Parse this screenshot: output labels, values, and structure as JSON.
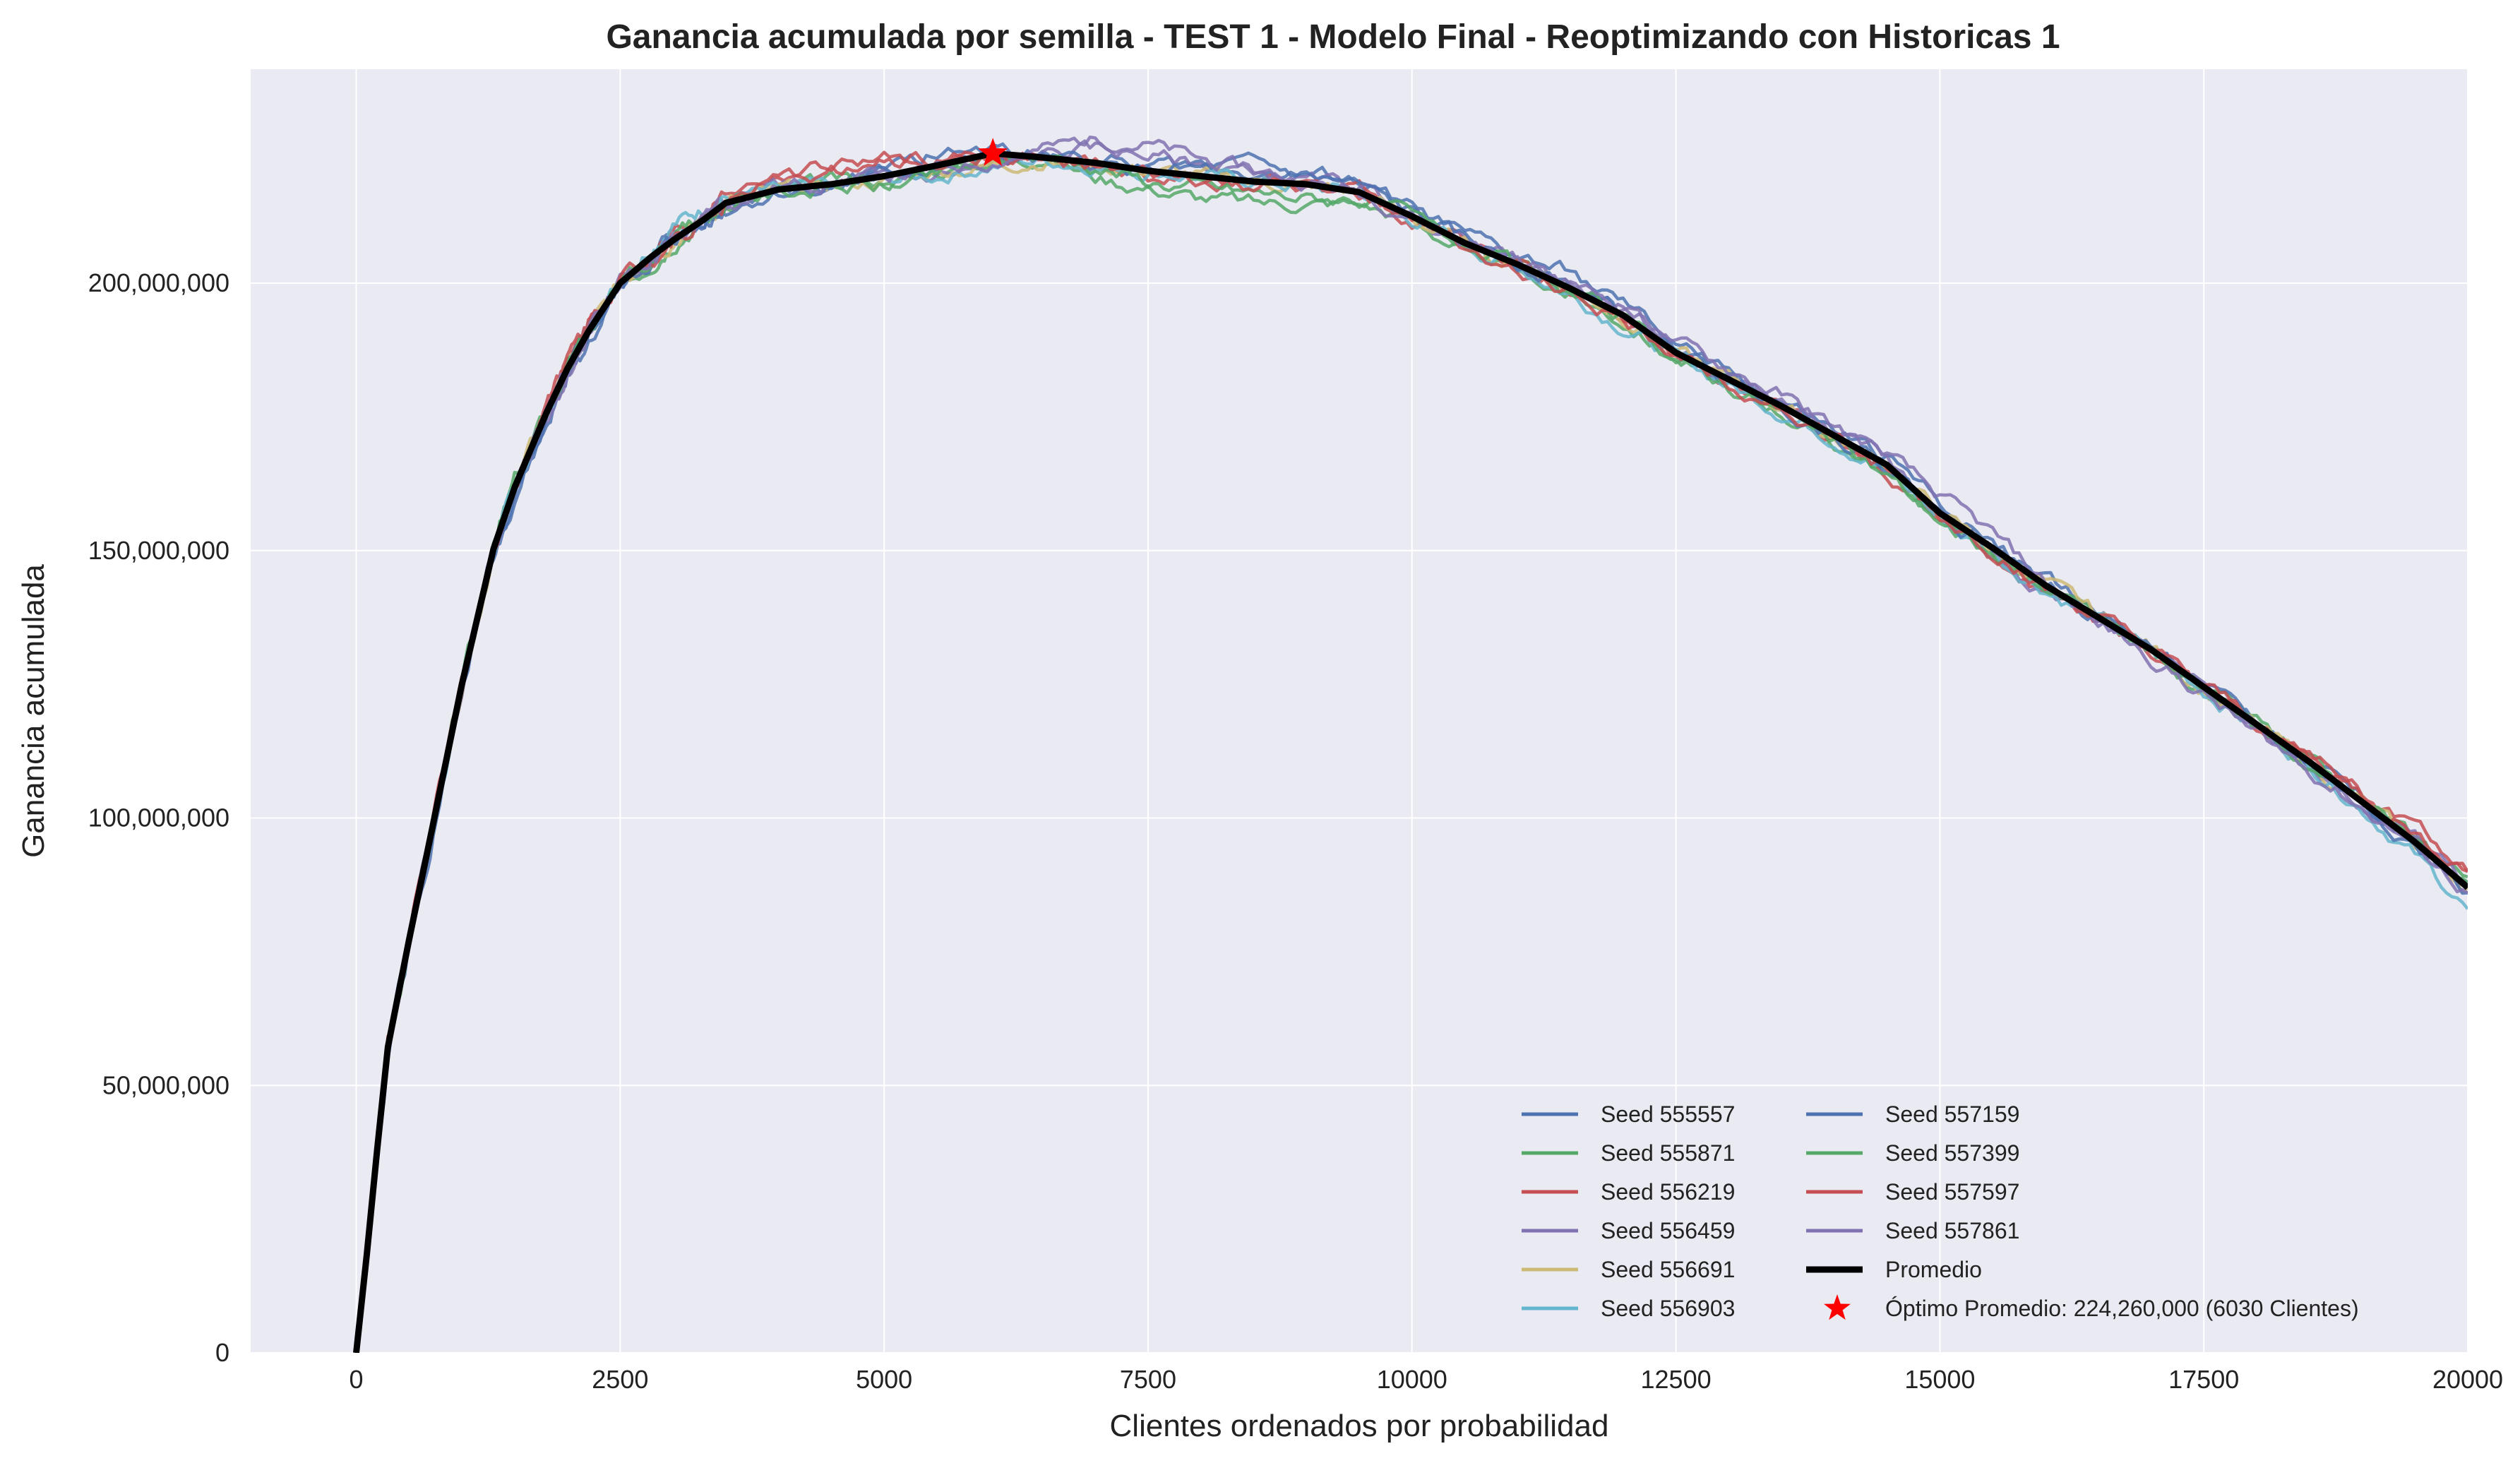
{
  "chart_data": {
    "type": "line",
    "title": "Ganancia acumulada por semilla - TEST 1 - Modelo Final  - Reoptimizando con Historicas 1",
    "xlabel": "Clientes ordenados por probabilidad",
    "ylabel": "Ganancia acumulada",
    "xlim": [
      -1000,
      20000
    ],
    "ylim": [
      0,
      240000000
    ],
    "xticks": [
      0,
      2500,
      5000,
      7500,
      10000,
      12500,
      15000,
      17500,
      20000
    ],
    "xtick_labels": [
      "0",
      "2500",
      "5000",
      "7500",
      "10000",
      "12500",
      "15000",
      "17500",
      "20000"
    ],
    "yticks": [
      0,
      50000000,
      100000000,
      150000000,
      200000000
    ],
    "ytick_labels": [
      "0",
      "50,000,000",
      "100,000,000",
      "150,000,000",
      "200,000,000"
    ],
    "grid": true,
    "legend_position": "lower-right",
    "background_color": "#eaeaf2",
    "x": [
      0,
      100,
      200,
      300,
      500,
      700,
      1000,
      1300,
      1500,
      1800,
      2000,
      2200,
      2500,
      2800,
      3000,
      3300,
      3500,
      4000,
      4500,
      5000,
      5500,
      6030,
      6500,
      7000,
      7500,
      8000,
      8500,
      9000,
      9500,
      10000,
      10500,
      11000,
      11500,
      12000,
      12500,
      13000,
      13500,
      14000,
      14500,
      15000,
      15500,
      16000,
      16500,
      17000,
      17500,
      18000,
      18500,
      19000,
      19500,
      20000
    ],
    "series": [
      {
        "name": "Seed 555557",
        "color": "#4c72b0",
        "noise": 1,
        "values": [
          0,
          18000000,
          38000000,
          56000000,
          76000000,
          95000000,
          124000000,
          149000000,
          160000000,
          173000000,
          182000000,
          189000000,
          200000000,
          205000000,
          208000000,
          211000000,
          213000000,
          217000000,
          218000000,
          221000000,
          224000000,
          225000000,
          224000000,
          223000000,
          222000000,
          222000000,
          221000000,
          220000000,
          219000000,
          214000000,
          209000000,
          205000000,
          202000000,
          196000000,
          189000000,
          183000000,
          178000000,
          172000000,
          167000000,
          159000000,
          152000000,
          145000000,
          139000000,
          133000000,
          125000000,
          118000000,
          111000000,
          103000000,
          95000000,
          87000000
        ]
      },
      {
        "name": "Seed 555871",
        "color": "#55a868",
        "noise": 2,
        "values": [
          0,
          18500000,
          38500000,
          57000000,
          77000000,
          96000000,
          125000000,
          151000000,
          163000000,
          176000000,
          183000000,
          190000000,
          199000000,
          204000000,
          208000000,
          212000000,
          214000000,
          217000000,
          219000000,
          219000000,
          221000000,
          223000000,
          224000000,
          220000000,
          218000000,
          216000000,
          215000000,
          215000000,
          215000000,
          212000000,
          206000000,
          202000000,
          198000000,
          193000000,
          186000000,
          181000000,
          176000000,
          170000000,
          165000000,
          156000000,
          150000000,
          143000000,
          137000000,
          131000000,
          124000000,
          118000000,
          110000000,
          103000000,
          96000000,
          89000000
        ]
      },
      {
        "name": "Seed 556219",
        "color": "#c44e52",
        "noise": 3,
        "values": [
          0,
          19000000,
          39000000,
          58000000,
          78000000,
          97000000,
          125000000,
          150000000,
          162000000,
          177000000,
          185000000,
          192000000,
          200000000,
          205000000,
          209000000,
          213000000,
          217000000,
          220000000,
          222000000,
          223000000,
          223000000,
          224000000,
          223000000,
          222000000,
          220000000,
          219000000,
          219000000,
          218000000,
          217000000,
          212000000,
          207000000,
          203000000,
          198000000,
          193000000,
          186000000,
          181000000,
          176000000,
          171000000,
          165000000,
          156000000,
          149000000,
          142000000,
          136000000,
          131000000,
          124000000,
          117000000,
          112000000,
          105000000,
          98000000,
          90000000
        ]
      },
      {
        "name": "Seed 556459",
        "color": "#8172b2",
        "noise": 4,
        "values": [
          0,
          18200000,
          37800000,
          56500000,
          76500000,
          95500000,
          124500000,
          150500000,
          161000000,
          175000000,
          183000000,
          190000000,
          200000000,
          205000000,
          208000000,
          212000000,
          215000000,
          218000000,
          218000000,
          219000000,
          220000000,
          222000000,
          224000000,
          225000000,
          224000000,
          222000000,
          221000000,
          219000000,
          218000000,
          213000000,
          208000000,
          204000000,
          200000000,
          195000000,
          188000000,
          182000000,
          178000000,
          172000000,
          167000000,
          157000000,
          150000000,
          143000000,
          137000000,
          131000000,
          124000000,
          117000000,
          110000000,
          103000000,
          96000000,
          88000000
        ]
      },
      {
        "name": "Seed 556691",
        "color": "#ccb974",
        "noise": 5,
        "values": [
          0,
          18300000,
          38200000,
          57200000,
          77500000,
          96500000,
          125000000,
          150000000,
          162000000,
          176000000,
          184000000,
          191000000,
          200000000,
          205000000,
          208000000,
          212000000,
          215000000,
          217000000,
          218000000,
          219000000,
          221000000,
          222000000,
          223000000,
          222000000,
          221000000,
          220000000,
          219000000,
          218000000,
          217000000,
          212000000,
          207000000,
          203000000,
          199000000,
          194000000,
          187000000,
          182000000,
          177000000,
          171000000,
          166000000,
          157000000,
          150000000,
          144000000,
          138000000,
          132000000,
          124000000,
          117000000,
          110000000,
          103000000,
          95000000,
          87000000
        ]
      },
      {
        "name": "Seed 556903",
        "color": "#64b5cd",
        "noise": 6,
        "values": [
          0,
          18100000,
          38100000,
          57100000,
          77100000,
          96100000,
          124800000,
          150200000,
          161500000,
          175500000,
          184000000,
          192000000,
          201000000,
          207000000,
          211000000,
          214000000,
          216000000,
          217000000,
          218000000,
          219000000,
          220000000,
          222000000,
          223000000,
          222000000,
          221000000,
          220000000,
          219000000,
          218000000,
          217000000,
          212000000,
          207000000,
          203000000,
          198000000,
          192000000,
          186000000,
          181000000,
          176000000,
          171000000,
          165000000,
          156000000,
          149000000,
          143000000,
          137000000,
          131000000,
          124000000,
          117000000,
          110000000,
          102000000,
          93000000,
          83000000
        ]
      },
      {
        "name": "Seed 557159",
        "color": "#4c72b0",
        "noise": 7,
        "values": [
          0,
          18000000,
          37900000,
          56800000,
          76800000,
          95800000,
          124200000,
          149500000,
          160500000,
          174000000,
          183000000,
          190000000,
          199000000,
          204000000,
          208000000,
          212000000,
          214000000,
          217000000,
          218000000,
          220000000,
          222000000,
          223000000,
          223000000,
          222000000,
          221000000,
          221000000,
          222000000,
          220000000,
          218000000,
          213000000,
          208000000,
          204000000,
          200000000,
          194000000,
          187000000,
          182000000,
          177000000,
          172000000,
          166000000,
          157000000,
          151000000,
          144000000,
          138000000,
          132000000,
          125000000,
          117000000,
          110000000,
          103000000,
          95000000,
          86000000
        ]
      },
      {
        "name": "Seed 557399",
        "color": "#55a868",
        "noise": 8,
        "values": [
          0,
          18600000,
          38600000,
          57600000,
          77600000,
          96600000,
          125500000,
          151000000,
          163000000,
          176000000,
          184000000,
          191000000,
          200000000,
          205000000,
          209000000,
          212000000,
          215000000,
          217000000,
          218000000,
          218000000,
          220000000,
          223000000,
          224000000,
          222000000,
          219000000,
          218000000,
          217000000,
          216000000,
          216000000,
          212000000,
          207000000,
          203000000,
          198000000,
          193000000,
          186000000,
          181000000,
          176000000,
          170000000,
          164000000,
          156000000,
          149000000,
          143000000,
          137000000,
          131000000,
          124000000,
          117000000,
          110000000,
          103000000,
          96000000,
          88000000
        ]
      },
      {
        "name": "Seed 557597",
        "color": "#c44e52",
        "noise": 9,
        "values": [
          0,
          18800000,
          38800000,
          57800000,
          77800000,
          96800000,
          125200000,
          150500000,
          162000000,
          177000000,
          186000000,
          193000000,
          201000000,
          205000000,
          208000000,
          212000000,
          215000000,
          219000000,
          221000000,
          222000000,
          223000000,
          224000000,
          223000000,
          221000000,
          220000000,
          219000000,
          218000000,
          218000000,
          216000000,
          212000000,
          207000000,
          203000000,
          198000000,
          193000000,
          187000000,
          182000000,
          177000000,
          171000000,
          165000000,
          156000000,
          150000000,
          143000000,
          137000000,
          131000000,
          124000000,
          118000000,
          111000000,
          104000000,
          97000000,
          90000000
        ]
      },
      {
        "name": "Seed 557861",
        "color": "#8172b2",
        "noise": 10,
        "values": [
          0,
          18400000,
          38400000,
          57400000,
          77400000,
          96400000,
          124600000,
          150600000,
          161800000,
          175800000,
          184000000,
          191000000,
          200000000,
          205000000,
          208000000,
          212000000,
          215000000,
          218000000,
          219000000,
          220000000,
          221000000,
          223000000,
          225000000,
          227000000,
          226000000,
          223000000,
          221000000,
          219000000,
          217000000,
          213000000,
          208000000,
          204000000,
          200000000,
          196000000,
          189000000,
          184000000,
          179000000,
          173000000,
          168000000,
          160000000,
          153000000,
          144000000,
          137000000,
          130000000,
          123000000,
          116000000,
          109000000,
          102000000,
          95000000,
          86000000
        ]
      },
      {
        "name": "Promedio",
        "color": "#000000",
        "noise": 0,
        "thick": true,
        "values": [
          0,
          18400000,
          38300000,
          57200000,
          77200000,
          96200000,
          124900000,
          150300000,
          161800000,
          175700000,
          184000000,
          191000000,
          200000000,
          205000000,
          208000000,
          212000000,
          215000000,
          217500000,
          218500000,
          220000000,
          222000000,
          224260000,
          223500000,
          222500000,
          221000000,
          220000000,
          219000000,
          218500000,
          217000000,
          212500000,
          207500000,
          203500000,
          199000000,
          194000000,
          187000000,
          182000000,
          177000000,
          171500000,
          166000000,
          157000000,
          150500000,
          143500000,
          137500000,
          131500000,
          124500000,
          117500000,
          110500000,
          103000000,
          95500000,
          87000000
        ]
      }
    ],
    "optimum": {
      "label": "Óptimo Promedio: 224,260,000 (6030 Clientes)",
      "x": 6030,
      "y": 224260000,
      "color": "#ff0000"
    }
  }
}
